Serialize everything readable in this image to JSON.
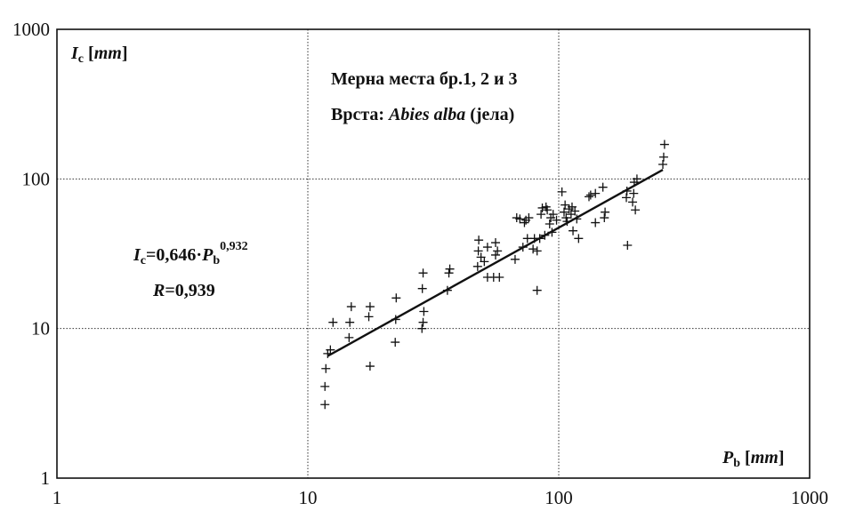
{
  "chart_data": {
    "type": "scatter",
    "x_scale": "log",
    "y_scale": "log",
    "xlim": [
      1,
      1000
    ],
    "ylim": [
      1,
      1000
    ],
    "grid": true,
    "x_ticks": [
      "1",
      "10",
      "100",
      "1000"
    ],
    "y_ticks": [
      "1",
      "10",
      "100",
      "1000"
    ],
    "ylabel": {
      "main": "I",
      "sub": "c",
      "unit": "mm"
    },
    "xlabel": {
      "main": "P",
      "sub": "b",
      "unit": "mm"
    },
    "title_line1": "Мерна места бр.1, 2 и 3",
    "title_line2": {
      "prefix": "Врста: ",
      "species": "Abies alba",
      "suffix": " (јела)"
    },
    "equation": {
      "lhs": "I",
      "lhs_sub": "c",
      "eq_coef": "=0,646·",
      "var": "P",
      "var_sub": "b",
      "exponent": "0,932"
    },
    "r_text": {
      "var": "R",
      "value": "=0,939"
    },
    "fit_line": {
      "coef": 0.646,
      "exponent": 0.932,
      "x_range": [
        12,
        260
      ]
    },
    "points": [
      {
        "x": 11.7,
        "y": 3.1
      },
      {
        "x": 11.7,
        "y": 4.1
      },
      {
        "x": 11.8,
        "y": 5.4
      },
      {
        "x": 12.0,
        "y": 6.8
      },
      {
        "x": 12.3,
        "y": 7.2
      },
      {
        "x": 12.6,
        "y": 11.0
      },
      {
        "x": 14.6,
        "y": 8.7
      },
      {
        "x": 14.7,
        "y": 11.0
      },
      {
        "x": 14.9,
        "y": 14.0
      },
      {
        "x": 17.5,
        "y": 12.0
      },
      {
        "x": 17.7,
        "y": 14.0
      },
      {
        "x": 17.7,
        "y": 5.6
      },
      {
        "x": 22.3,
        "y": 8.1
      },
      {
        "x": 22.4,
        "y": 11.5
      },
      {
        "x": 22.5,
        "y": 16.0
      },
      {
        "x": 28.5,
        "y": 10.0
      },
      {
        "x": 28.8,
        "y": 11.0
      },
      {
        "x": 29.0,
        "y": 13.0
      },
      {
        "x": 28.6,
        "y": 18.5
      },
      {
        "x": 28.8,
        "y": 23.5
      },
      {
        "x": 36.0,
        "y": 18.0
      },
      {
        "x": 36.5,
        "y": 23.5
      },
      {
        "x": 36.8,
        "y": 25.0
      },
      {
        "x": 47.5,
        "y": 26.0
      },
      {
        "x": 47.8,
        "y": 33.0
      },
      {
        "x": 48.0,
        "y": 39.0
      },
      {
        "x": 49.0,
        "y": 30.0
      },
      {
        "x": 50.5,
        "y": 28.0
      },
      {
        "x": 52.0,
        "y": 22.0
      },
      {
        "x": 52.0,
        "y": 35.0
      },
      {
        "x": 55.0,
        "y": 22.0
      },
      {
        "x": 56.0,
        "y": 31.0
      },
      {
        "x": 56.0,
        "y": 37.5
      },
      {
        "x": 57.0,
        "y": 33.0
      },
      {
        "x": 58.0,
        "y": 22.0
      },
      {
        "x": 67.0,
        "y": 29.0
      },
      {
        "x": 68.0,
        "y": 55.0
      },
      {
        "x": 70.0,
        "y": 54.0
      },
      {
        "x": 72.0,
        "y": 35.0
      },
      {
        "x": 73.0,
        "y": 51.0
      },
      {
        "x": 74.0,
        "y": 53.0
      },
      {
        "x": 75.0,
        "y": 40.0
      },
      {
        "x": 76.0,
        "y": 55.0
      },
      {
        "x": 79.0,
        "y": 34.0
      },
      {
        "x": 80.0,
        "y": 40.0
      },
      {
        "x": 82.0,
        "y": 33.0
      },
      {
        "x": 82.0,
        "y": 18.0
      },
      {
        "x": 84.0,
        "y": 40.0
      },
      {
        "x": 85.0,
        "y": 58.0
      },
      {
        "x": 86.0,
        "y": 64.0
      },
      {
        "x": 88.0,
        "y": 42.0
      },
      {
        "x": 89.0,
        "y": 65.0
      },
      {
        "x": 90.0,
        "y": 62.0
      },
      {
        "x": 92.0,
        "y": 50.0
      },
      {
        "x": 93.0,
        "y": 55.0
      },
      {
        "x": 94.0,
        "y": 44.0
      },
      {
        "x": 95.0,
        "y": 58.0
      },
      {
        "x": 98.0,
        "y": 53.0
      },
      {
        "x": 103.0,
        "y": 82.0
      },
      {
        "x": 105.0,
        "y": 60.0
      },
      {
        "x": 106.0,
        "y": 67.0
      },
      {
        "x": 107.0,
        "y": 55.0
      },
      {
        "x": 108.0,
        "y": 52.0
      },
      {
        "x": 110.0,
        "y": 63.0
      },
      {
        "x": 112.0,
        "y": 58.0
      },
      {
        "x": 113.0,
        "y": 65.0
      },
      {
        "x": 114.0,
        "y": 45.0
      },
      {
        "x": 116.0,
        "y": 61.0
      },
      {
        "x": 118.0,
        "y": 54.0
      },
      {
        "x": 120.0,
        "y": 40.0
      },
      {
        "x": 132.0,
        "y": 76.0
      },
      {
        "x": 134.0,
        "y": 78.0
      },
      {
        "x": 140.0,
        "y": 51.0
      },
      {
        "x": 140.0,
        "y": 80.0
      },
      {
        "x": 150.0,
        "y": 88.0
      },
      {
        "x": 152.0,
        "y": 55.0
      },
      {
        "x": 153.0,
        "y": 60.0
      },
      {
        "x": 186.0,
        "y": 75.0
      },
      {
        "x": 187.0,
        "y": 83.0
      },
      {
        "x": 188.0,
        "y": 36.0
      },
      {
        "x": 197.0,
        "y": 70.0
      },
      {
        "x": 199.0,
        "y": 80.0
      },
      {
        "x": 200.0,
        "y": 95.0
      },
      {
        "x": 202.0,
        "y": 62.0
      },
      {
        "x": 205.0,
        "y": 100.0
      },
      {
        "x": 260.0,
        "y": 125.0
      },
      {
        "x": 262.0,
        "y": 140.0
      },
      {
        "x": 264.0,
        "y": 170.0
      }
    ]
  }
}
